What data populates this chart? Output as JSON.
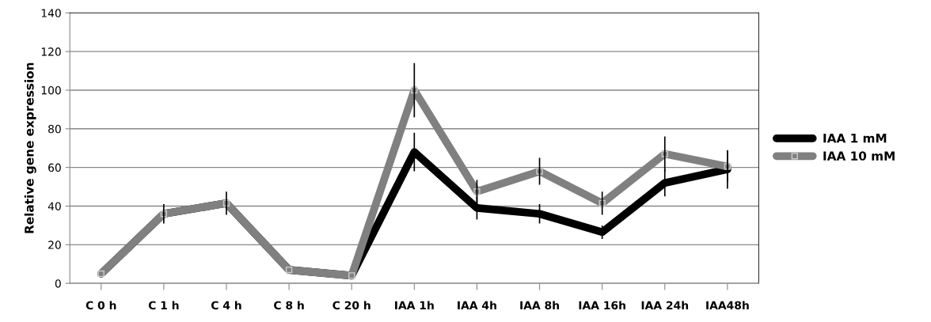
{
  "chart_data": {
    "type": "line",
    "ylabel": "Relative gene expression",
    "categories": [
      "C 0 h",
      "C 1 h",
      "C 4 h",
      "C 8 h",
      "C 20 h",
      "IAA 1h",
      "IAA 4h",
      "IAA 8h",
      "IAA 16h",
      "IAA 24h",
      "IAA48h"
    ],
    "series": [
      {
        "name": "IAA 1 mM",
        "color": "#000000",
        "marker": "circle",
        "values": [
          5,
          36,
          41.5,
          7,
          4,
          68,
          39,
          36,
          26.5,
          52,
          59
        ],
        "errors": [
          null,
          null,
          null,
          null,
          null,
          10,
          6,
          5,
          3.5,
          7,
          10
        ]
      },
      {
        "name": "IAA 10 mM",
        "color": "#808080",
        "marker": "square",
        "values": [
          5,
          36,
          41.5,
          7,
          4,
          100,
          47.5,
          58,
          41.5,
          67,
          60.5
        ],
        "errors": [
          null,
          5,
          6,
          null,
          null,
          14,
          6,
          7,
          6,
          9,
          8
        ]
      }
    ],
    "ylim": [
      0,
      140
    ],
    "yticks": [
      0,
      20,
      40,
      60,
      80,
      100,
      120,
      140
    ],
    "grid": "y",
    "legend": "right"
  }
}
